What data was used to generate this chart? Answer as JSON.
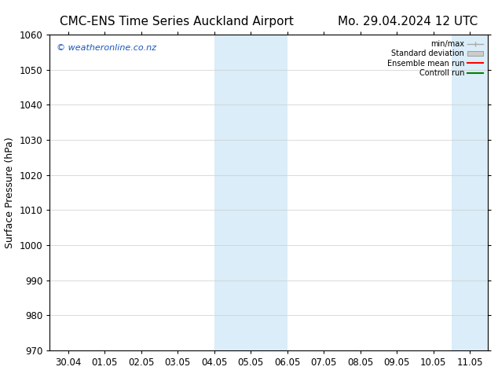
{
  "title_left": "CMC-ENS Time Series Auckland Airport",
  "title_right": "Mo. 29.04.2024 12 UTC",
  "ylabel": "Surface Pressure (hPa)",
  "ylim": [
    970,
    1060
  ],
  "yticks": [
    970,
    980,
    990,
    1000,
    1010,
    1020,
    1030,
    1040,
    1050,
    1060
  ],
  "xtick_labels": [
    "30.04",
    "01.05",
    "02.05",
    "03.05",
    "04.05",
    "05.05",
    "06.05",
    "07.05",
    "08.05",
    "09.05",
    "10.05",
    "11.05"
  ],
  "x_positions": [
    0,
    1,
    2,
    3,
    4,
    5,
    6,
    7,
    8,
    9,
    10,
    11
  ],
  "shaded_regions": [
    {
      "xmin": 4.0,
      "xmax": 5.0,
      "color": "#daedf8"
    },
    {
      "xmin": 5.0,
      "xmax": 6.0,
      "color": "#daedf8"
    },
    {
      "xmin": 10.5,
      "xmax": 11.0,
      "color": "#daedf8"
    },
    {
      "xmin": 11.0,
      "xmax": 11.5,
      "color": "#daedf8"
    }
  ],
  "watermark_text": "© weatheronline.co.nz",
  "watermark_color": "#1a56bb",
  "background_color": "#ffffff",
  "legend_entries": [
    {
      "label": "min/max",
      "color": "#aaaaaa",
      "lw": 1.0,
      "style": "minmax"
    },
    {
      "label": "Standard deviation",
      "color": "#cccccc",
      "lw": 6,
      "style": "band"
    },
    {
      "label": "Ensemble mean run",
      "color": "#ff0000",
      "lw": 1.5,
      "style": "line"
    },
    {
      "label": "Controll run",
      "color": "#008000",
      "lw": 1.5,
      "style": "line"
    }
  ],
  "title_fontsize": 11,
  "axis_fontsize": 9,
  "tick_fontsize": 8.5
}
